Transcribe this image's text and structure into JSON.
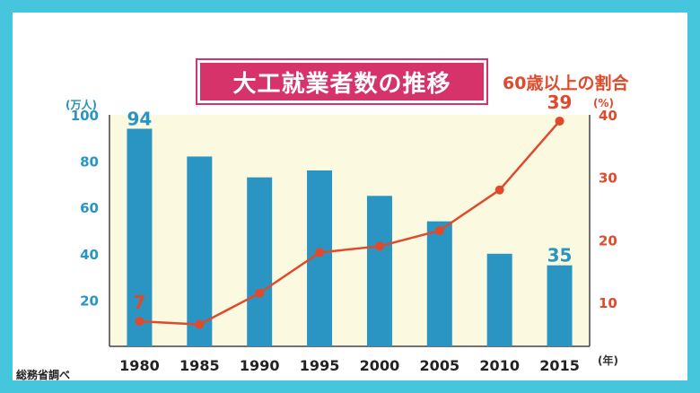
{
  "header": {
    "title": "大工就業者数の推移",
    "right_title": "60歳以上の割合"
  },
  "source": "総務省調べ",
  "colors": {
    "frame": "#45c6dc",
    "title_bg": "#d6336b",
    "bar": "#2a95c2",
    "line": "#e04a2c",
    "plot_bg": "#fbfae0"
  },
  "chart_data": {
    "type": "bar",
    "title": "大工就業者数の推移",
    "categories": [
      "1980",
      "1985",
      "1990",
      "1995",
      "2000",
      "2005",
      "2010",
      "2015"
    ],
    "x_unit": "(年)",
    "series": [
      {
        "values": [
          94,
          82,
          73,
          76,
          65,
          54,
          40,
          35
        ],
        "axis": "left",
        "unit": "(万人)",
        "labels": {
          "0": "94",
          "7": "35"
        }
      },
      {
        "name": "60歳以上の割合",
        "type": "line",
        "values": [
          7,
          6.5,
          11.5,
          18,
          19,
          21.5,
          28,
          39
        ],
        "axis": "right",
        "unit": "(%)",
        "labels": {
          "0": "7",
          "7": "39"
        }
      }
    ],
    "y_left": {
      "ticks": [
        "20",
        "40",
        "60",
        "80",
        "100"
      ],
      "range": [
        0,
        100
      ]
    },
    "y_right": {
      "ticks": [
        "10",
        "20",
        "30",
        "40"
      ],
      "range": [
        3,
        40
      ]
    }
  }
}
